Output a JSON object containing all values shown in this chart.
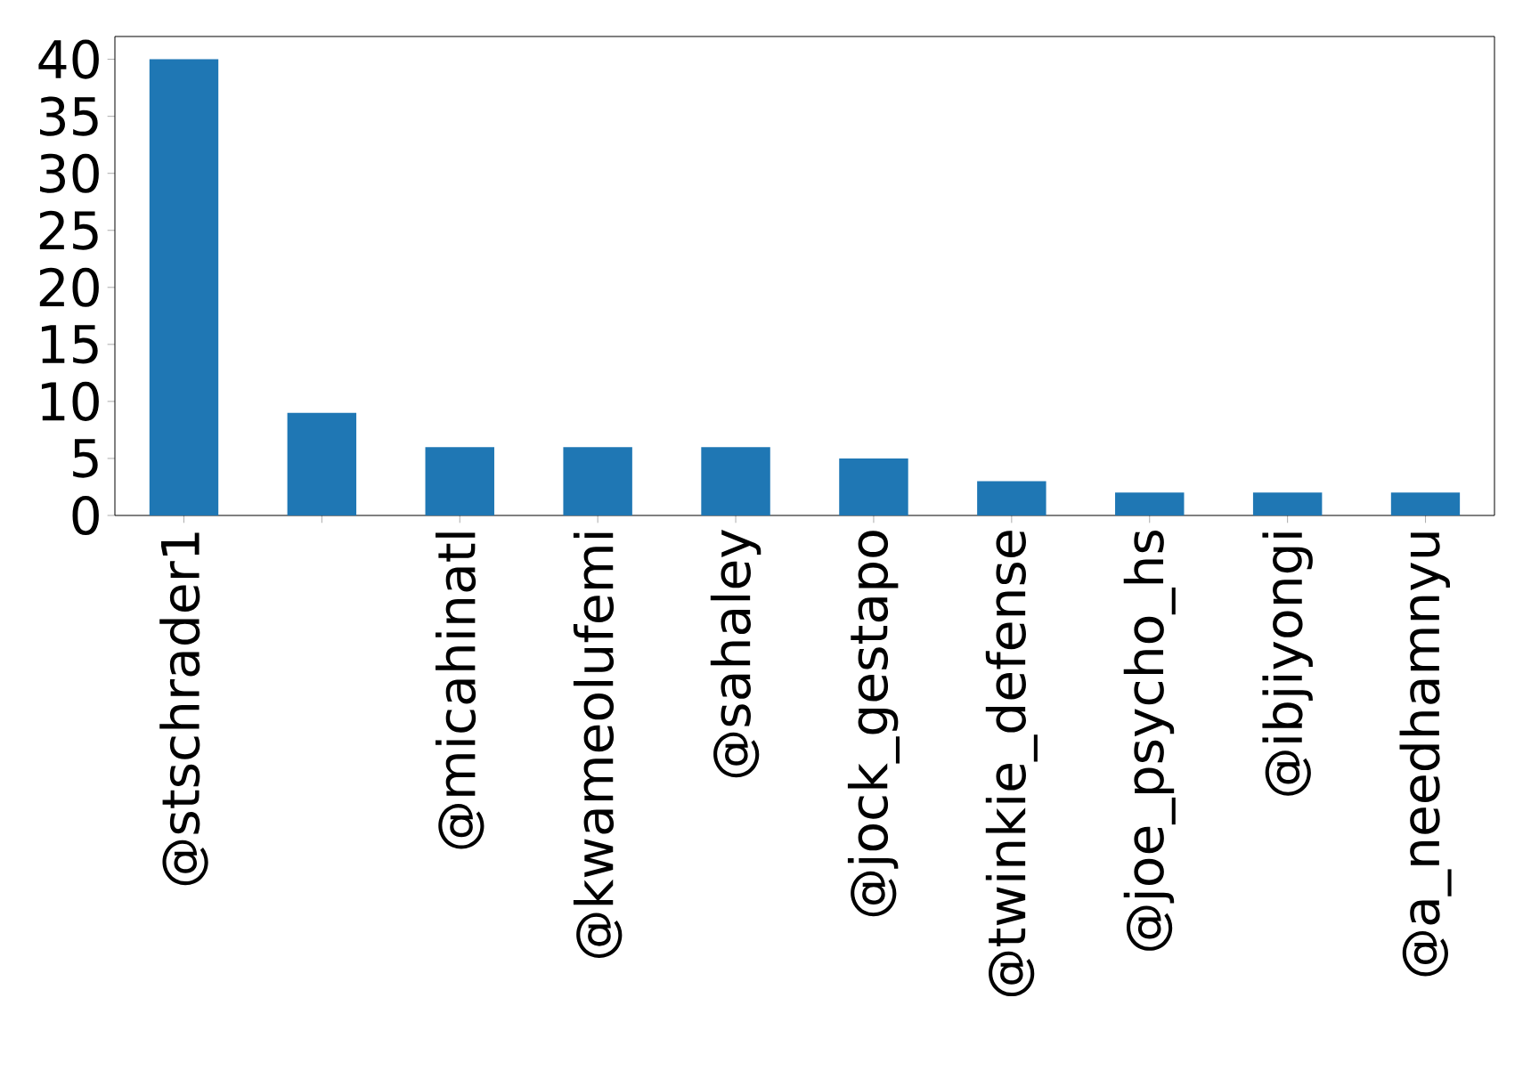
{
  "chart_data": {
    "type": "bar",
    "categories": [
      "@stschrader1",
      null,
      "@micahinatl",
      "@kwameolufemi",
      "@sahaley",
      "@jock_gestapo",
      "@twinkie_defense",
      "@joe_psycho_hs",
      "@ibjiyongi",
      "@a_needhamnyu"
    ],
    "values": [
      40,
      9,
      6,
      6,
      6,
      5,
      3,
      2,
      2,
      2
    ],
    "color": "#1f77b4",
    "ylim": [
      0,
      42
    ],
    "yticks": [
      0,
      5,
      10,
      15,
      20,
      25,
      30,
      35,
      40
    ]
  }
}
